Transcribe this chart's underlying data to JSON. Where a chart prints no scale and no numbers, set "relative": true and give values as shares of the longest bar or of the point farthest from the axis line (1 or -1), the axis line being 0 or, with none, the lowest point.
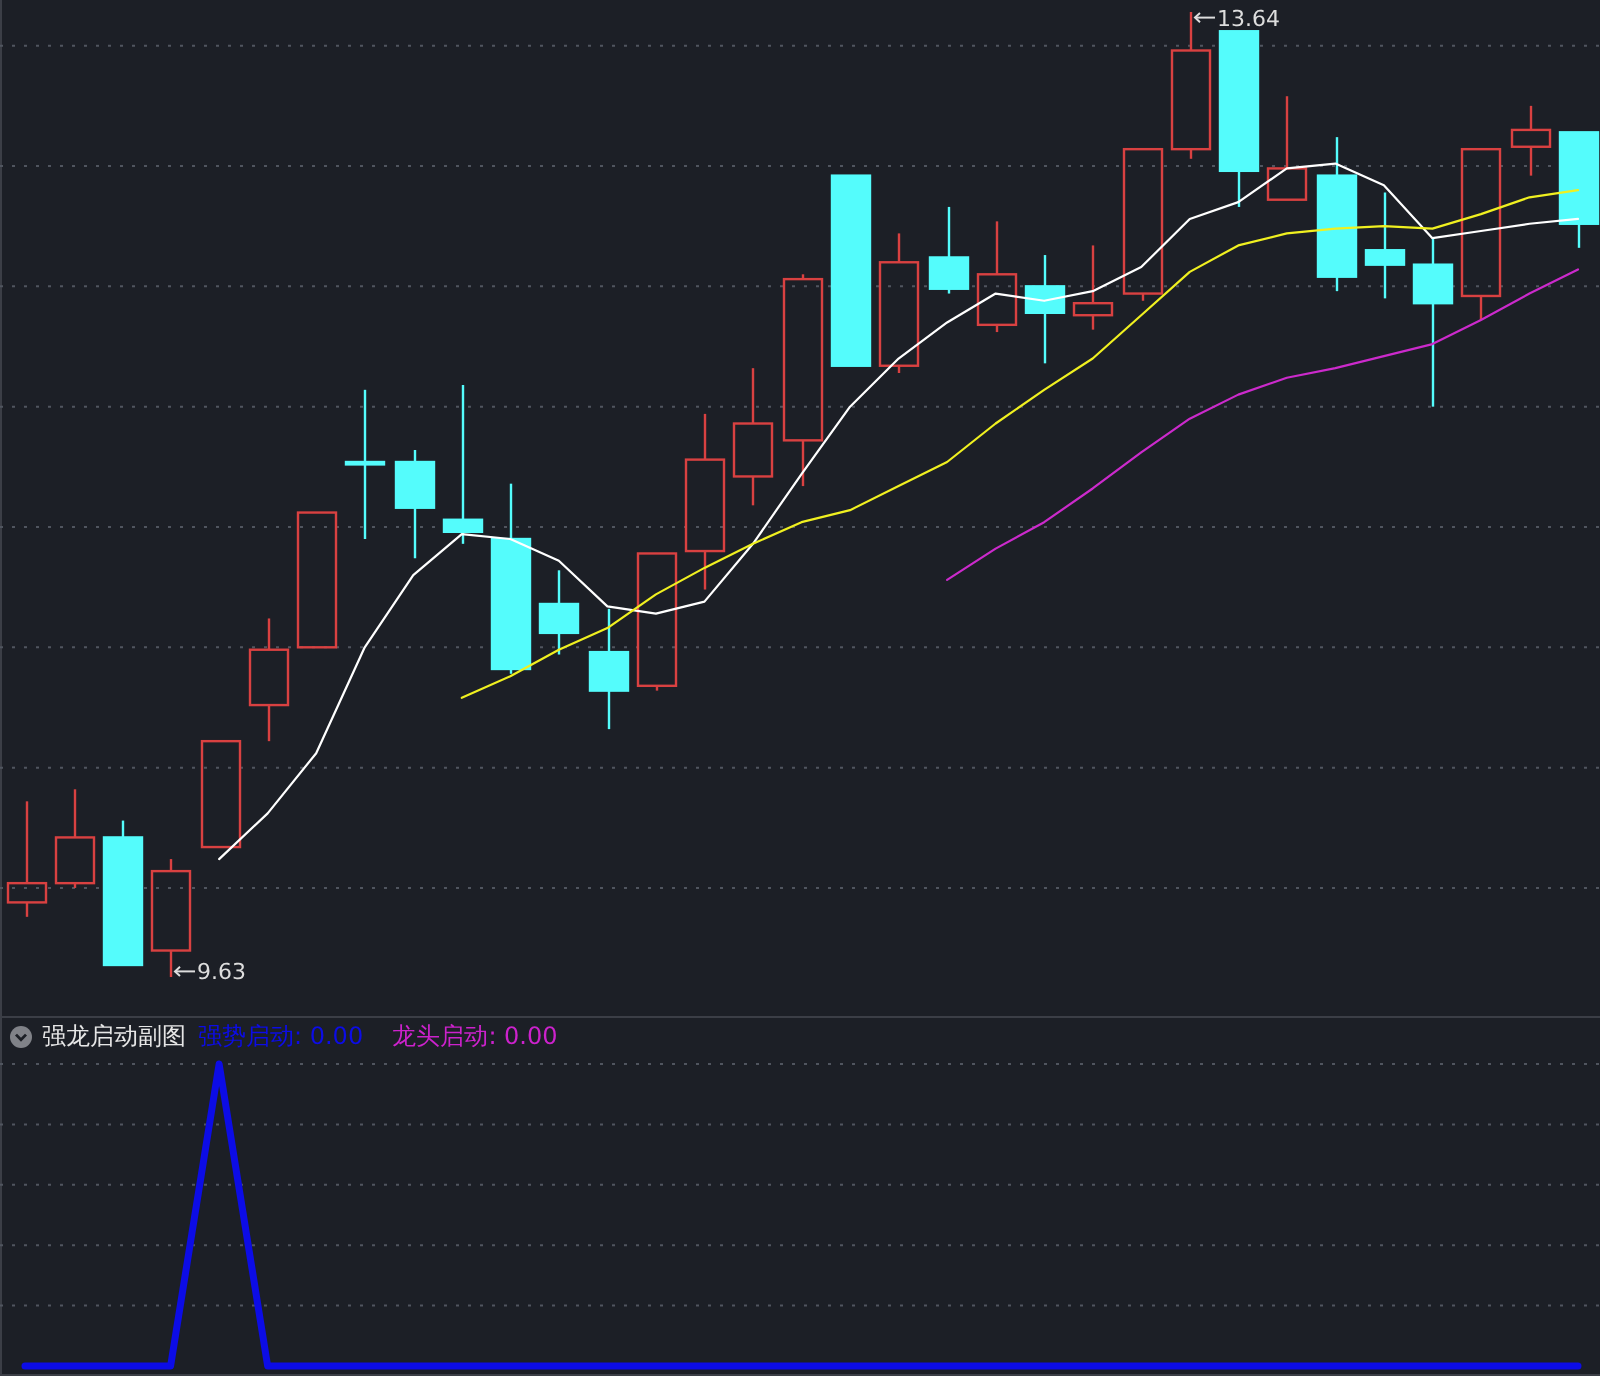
{
  "chart_data": [
    {
      "type": "candlestick",
      "categories": [
        null,
        null,
        null,
        null,
        null,
        null,
        null,
        null,
        null,
        null,
        null,
        null,
        null,
        null,
        null,
        null,
        null,
        null,
        null,
        null,
        null,
        null,
        null,
        null,
        null,
        null,
        null,
        null,
        null,
        null,
        null,
        null,
        null
      ],
      "ohlc": [
        [
          9.94,
          10.36,
          9.88,
          10.02
        ],
        [
          10.02,
          10.41,
          10.0,
          10.21
        ],
        [
          10.21,
          10.28,
          9.68,
          9.68
        ],
        [
          9.74,
          10.12,
          9.63,
          10.07
        ],
        [
          10.17,
          10.61,
          10.17,
          10.61
        ],
        [
          10.76,
          11.12,
          10.61,
          10.99
        ],
        [
          11.0,
          11.56,
          11.0,
          11.56
        ],
        [
          11.77,
          12.07,
          11.45,
          11.76
        ],
        [
          11.77,
          11.82,
          11.37,
          11.58
        ],
        [
          11.53,
          12.09,
          11.43,
          11.48
        ],
        [
          11.45,
          11.68,
          10.89,
          10.91
        ],
        [
          11.18,
          11.32,
          10.97,
          11.06
        ],
        [
          10.98,
          11.16,
          10.66,
          10.82
        ],
        [
          10.84,
          11.39,
          10.82,
          11.39
        ],
        [
          11.4,
          11.97,
          11.24,
          11.78
        ],
        [
          11.71,
          12.16,
          11.59,
          11.93
        ],
        [
          11.86,
          12.55,
          11.67,
          12.53
        ],
        [
          12.96,
          12.96,
          12.17,
          12.17
        ],
        [
          12.17,
          12.72,
          12.14,
          12.6
        ],
        [
          12.62,
          12.83,
          12.47,
          12.49
        ],
        [
          12.34,
          12.77,
          12.31,
          12.55
        ],
        [
          12.5,
          12.63,
          12.18,
          12.39
        ],
        [
          12.38,
          12.67,
          12.32,
          12.43
        ],
        [
          12.47,
          13.07,
          12.44,
          13.07
        ],
        [
          13.07,
          13.64,
          13.03,
          13.48
        ],
        [
          13.56,
          13.56,
          12.83,
          12.98
        ],
        [
          12.86,
          13.29,
          12.86,
          12.99
        ],
        [
          12.96,
          13.12,
          12.48,
          12.54
        ],
        [
          12.65,
          12.89,
          12.45,
          12.59
        ],
        [
          12.59,
          12.7,
          12.0,
          12.43
        ],
        [
          12.46,
          13.07,
          12.36,
          13.07
        ],
        [
          13.08,
          13.25,
          12.96,
          13.15
        ],
        [
          13.14,
          13.14,
          12.66,
          12.76
        ]
      ],
      "colors": [
        "#d94141",
        "#d94141",
        "#54fcfc",
        "#d94141",
        "#d94141",
        "#d94141",
        "#d94141",
        "#54fcfc",
        "#54fcfc",
        "#54fcfc",
        "#54fcfc",
        "#54fcfc",
        "#54fcfc",
        "#d94141",
        "#d94141",
        "#d94141",
        "#d94141",
        "#54fcfc",
        "#d94141",
        "#54fcfc",
        "#d94141",
        "#54fcfc",
        "#d94141",
        "#d94141",
        "#d94141",
        "#54fcfc",
        "#d94141",
        "#54fcfc",
        "#54fcfc",
        "#54fcfc",
        "#d94141",
        "#d94141",
        "#54fcfc"
      ],
      "series": [
        {
          "type": "line",
          "color": "#ffffff",
          "values": [
            null,
            null,
            null,
            null,
            10.12,
            10.31,
            10.56,
            11.0,
            11.3,
            11.47,
            11.45,
            11.36,
            11.17,
            11.14,
            11.19,
            11.43,
            11.72,
            12.0,
            12.2,
            12.35,
            12.47,
            12.44,
            12.48,
            12.58,
            12.78,
            12.85,
            12.99,
            13.01,
            12.92,
            12.7,
            12.73,
            12.76,
            12.78
          ]
        },
        {
          "type": "line",
          "color": "#f0f020",
          "values": [
            null,
            null,
            null,
            null,
            null,
            null,
            null,
            null,
            null,
            10.79,
            10.88,
            10.99,
            11.08,
            11.22,
            11.33,
            11.43,
            11.52,
            11.57,
            11.67,
            11.77,
            11.93,
            12.07,
            12.2,
            12.38,
            12.56,
            12.67,
            12.72,
            12.74,
            12.75,
            12.74,
            12.8,
            12.87,
            12.9
          ]
        },
        {
          "type": "line",
          "color": "#cc2acc",
          "values": [
            null,
            null,
            null,
            null,
            null,
            null,
            null,
            null,
            null,
            null,
            null,
            null,
            null,
            null,
            null,
            null,
            null,
            null,
            null,
            11.28,
            11.41,
            11.52,
            11.66,
            11.81,
            11.95,
            12.05,
            12.12,
            12.16,
            12.21,
            12.26,
            12.36,
            12.47,
            12.57
          ]
        }
      ],
      "yticks": [
        {
          "value": 10,
          "label": null
        },
        {
          "value": 10.5,
          "label": null
        },
        {
          "value": 11,
          "label": null
        },
        {
          "value": 11.5,
          "label": null
        },
        {
          "value": 12,
          "label": null
        },
        {
          "value": 12.5,
          "label": null
        },
        {
          "value": 13,
          "label": null
        },
        {
          "value": 13.5,
          "label": null
        }
      ],
      "grid": "y",
      "annotations": [
        "13.64",
        "9.63"
      ]
    },
    {
      "type": "line",
      "title": "强龙启动副图",
      "categories": [
        null,
        null,
        null,
        null,
        null,
        null,
        null,
        null,
        null,
        null,
        null,
        null,
        null,
        null,
        null,
        null,
        null,
        null,
        null,
        null,
        null,
        null,
        null,
        null,
        null,
        null,
        null,
        null,
        null,
        null,
        null,
        null,
        null
      ],
      "relative": true,
      "series": [
        {
          "name": "强势启动: 0.00",
          "color": "#0c0ce6",
          "values": [
            0,
            0,
            0,
            0,
            1,
            0,
            0,
            0,
            0,
            0,
            0,
            0,
            0,
            0,
            0,
            0,
            0,
            0,
            0,
            0,
            0,
            0,
            0,
            0,
            0,
            0,
            0,
            0,
            0,
            0,
            0,
            0,
            0
          ]
        },
        {
          "name": "龙头启动: 0.00",
          "color": "#cc22cc",
          "values": [
            null,
            null,
            null,
            null,
            null,
            null,
            null,
            null,
            null,
            null,
            null,
            null,
            null,
            null,
            null,
            null,
            null,
            null,
            null,
            null,
            null,
            null,
            null,
            null,
            null,
            null,
            null,
            null,
            null,
            null,
            null,
            null,
            null
          ]
        }
      ],
      "grid": "y",
      "legend": "top left"
    }
  ]
}
